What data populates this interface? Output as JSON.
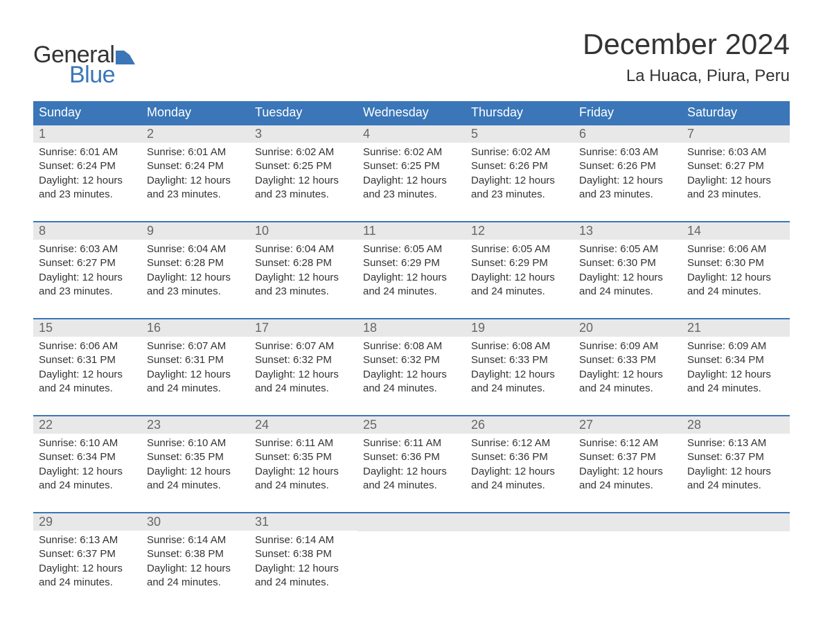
{
  "logo": {
    "text_top": "General",
    "text_bottom": "Blue",
    "color_top": "#333333",
    "color_bottom": "#3a76b8",
    "flag_color": "#3a76b8"
  },
  "title": "December 2024",
  "location": "La Huaca, Piura, Peru",
  "colors": {
    "header_bg": "#3a76b8",
    "header_text": "#ffffff",
    "daynum_bg": "#e8e8e8",
    "daynum_text": "#666666",
    "body_text": "#333333",
    "week_border": "#3a76b8",
    "page_bg": "#ffffff"
  },
  "typography": {
    "title_fontsize": 42,
    "location_fontsize": 24,
    "dow_fontsize": 18,
    "daynum_fontsize": 18,
    "body_fontsize": 15,
    "logo_fontsize": 34
  },
  "layout": {
    "columns": 7,
    "rows": 5,
    "week_start": "Sunday"
  },
  "days_of_week": [
    "Sunday",
    "Monday",
    "Tuesday",
    "Wednesday",
    "Thursday",
    "Friday",
    "Saturday"
  ],
  "labels": {
    "sunrise": "Sunrise:",
    "sunset": "Sunset:",
    "daylight": "Daylight:"
  },
  "days": [
    {
      "num": "1",
      "sunrise": "6:01 AM",
      "sunset": "6:24 PM",
      "daylight": "12 hours and 23 minutes."
    },
    {
      "num": "2",
      "sunrise": "6:01 AM",
      "sunset": "6:24 PM",
      "daylight": "12 hours and 23 minutes."
    },
    {
      "num": "3",
      "sunrise": "6:02 AM",
      "sunset": "6:25 PM",
      "daylight": "12 hours and 23 minutes."
    },
    {
      "num": "4",
      "sunrise": "6:02 AM",
      "sunset": "6:25 PM",
      "daylight": "12 hours and 23 minutes."
    },
    {
      "num": "5",
      "sunrise": "6:02 AM",
      "sunset": "6:26 PM",
      "daylight": "12 hours and 23 minutes."
    },
    {
      "num": "6",
      "sunrise": "6:03 AM",
      "sunset": "6:26 PM",
      "daylight": "12 hours and 23 minutes."
    },
    {
      "num": "7",
      "sunrise": "6:03 AM",
      "sunset": "6:27 PM",
      "daylight": "12 hours and 23 minutes."
    },
    {
      "num": "8",
      "sunrise": "6:03 AM",
      "sunset": "6:27 PM",
      "daylight": "12 hours and 23 minutes."
    },
    {
      "num": "9",
      "sunrise": "6:04 AM",
      "sunset": "6:28 PM",
      "daylight": "12 hours and 23 minutes."
    },
    {
      "num": "10",
      "sunrise": "6:04 AM",
      "sunset": "6:28 PM",
      "daylight": "12 hours and 23 minutes."
    },
    {
      "num": "11",
      "sunrise": "6:05 AM",
      "sunset": "6:29 PM",
      "daylight": "12 hours and 24 minutes."
    },
    {
      "num": "12",
      "sunrise": "6:05 AM",
      "sunset": "6:29 PM",
      "daylight": "12 hours and 24 minutes."
    },
    {
      "num": "13",
      "sunrise": "6:05 AM",
      "sunset": "6:30 PM",
      "daylight": "12 hours and 24 minutes."
    },
    {
      "num": "14",
      "sunrise": "6:06 AM",
      "sunset": "6:30 PM",
      "daylight": "12 hours and 24 minutes."
    },
    {
      "num": "15",
      "sunrise": "6:06 AM",
      "sunset": "6:31 PM",
      "daylight": "12 hours and 24 minutes."
    },
    {
      "num": "16",
      "sunrise": "6:07 AM",
      "sunset": "6:31 PM",
      "daylight": "12 hours and 24 minutes."
    },
    {
      "num": "17",
      "sunrise": "6:07 AM",
      "sunset": "6:32 PM",
      "daylight": "12 hours and 24 minutes."
    },
    {
      "num": "18",
      "sunrise": "6:08 AM",
      "sunset": "6:32 PM",
      "daylight": "12 hours and 24 minutes."
    },
    {
      "num": "19",
      "sunrise": "6:08 AM",
      "sunset": "6:33 PM",
      "daylight": "12 hours and 24 minutes."
    },
    {
      "num": "20",
      "sunrise": "6:09 AM",
      "sunset": "6:33 PM",
      "daylight": "12 hours and 24 minutes."
    },
    {
      "num": "21",
      "sunrise": "6:09 AM",
      "sunset": "6:34 PM",
      "daylight": "12 hours and 24 minutes."
    },
    {
      "num": "22",
      "sunrise": "6:10 AM",
      "sunset": "6:34 PM",
      "daylight": "12 hours and 24 minutes."
    },
    {
      "num": "23",
      "sunrise": "6:10 AM",
      "sunset": "6:35 PM",
      "daylight": "12 hours and 24 minutes."
    },
    {
      "num": "24",
      "sunrise": "6:11 AM",
      "sunset": "6:35 PM",
      "daylight": "12 hours and 24 minutes."
    },
    {
      "num": "25",
      "sunrise": "6:11 AM",
      "sunset": "6:36 PM",
      "daylight": "12 hours and 24 minutes."
    },
    {
      "num": "26",
      "sunrise": "6:12 AM",
      "sunset": "6:36 PM",
      "daylight": "12 hours and 24 minutes."
    },
    {
      "num": "27",
      "sunrise": "6:12 AM",
      "sunset": "6:37 PM",
      "daylight": "12 hours and 24 minutes."
    },
    {
      "num": "28",
      "sunrise": "6:13 AM",
      "sunset": "6:37 PM",
      "daylight": "12 hours and 24 minutes."
    },
    {
      "num": "29",
      "sunrise": "6:13 AM",
      "sunset": "6:37 PM",
      "daylight": "12 hours and 24 minutes."
    },
    {
      "num": "30",
      "sunrise": "6:14 AM",
      "sunset": "6:38 PM",
      "daylight": "12 hours and 24 minutes."
    },
    {
      "num": "31",
      "sunrise": "6:14 AM",
      "sunset": "6:38 PM",
      "daylight": "12 hours and 24 minutes."
    }
  ]
}
